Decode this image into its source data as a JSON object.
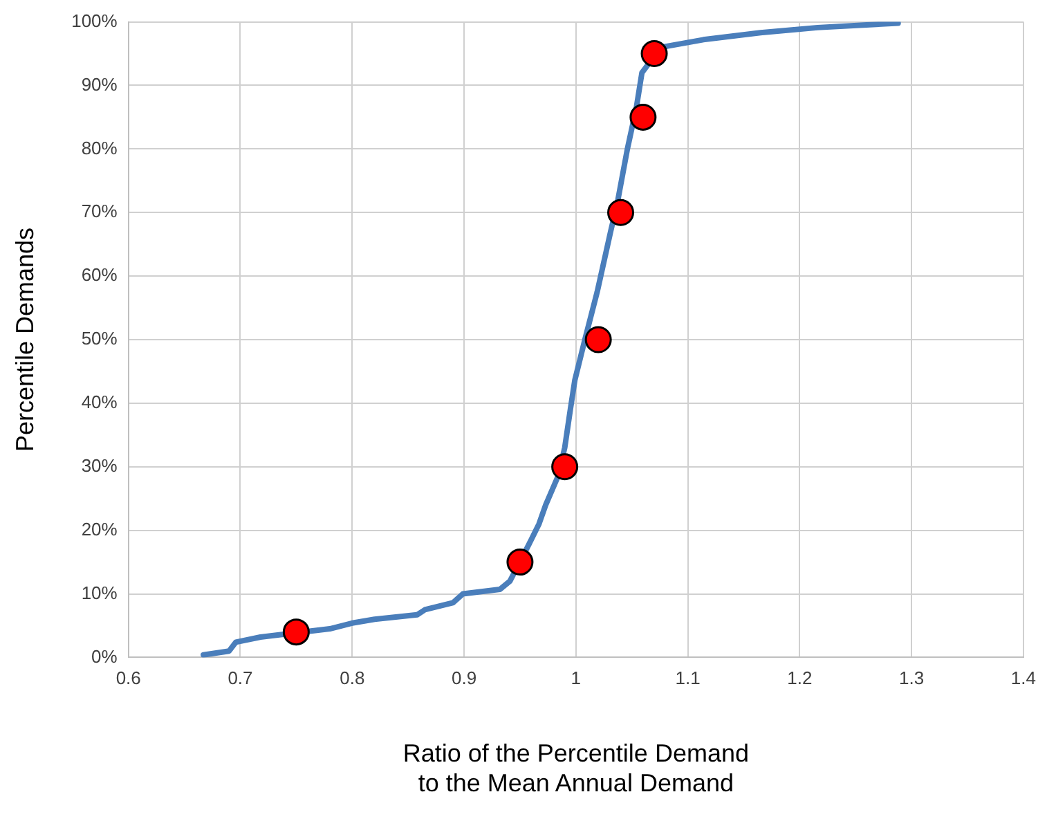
{
  "chart_data": {
    "type": "line",
    "xlabel": "Ratio of the Percentile Demand\nto the Mean Annual Demand",
    "ylabel": "Percentile Demands",
    "xlim": [
      0.6,
      1.4
    ],
    "xticks": [
      0.6,
      0.7,
      0.8,
      0.9,
      1,
      1.1,
      1.2,
      1.3,
      1.4
    ],
    "ylim": [
      0,
      100
    ],
    "yticks": [
      {
        "value": 0,
        "label": "0%"
      },
      {
        "value": 10,
        "label": "10%"
      },
      {
        "value": 20,
        "label": "20%"
      },
      {
        "value": 30,
        "label": "30%"
      },
      {
        "value": 40,
        "label": "40%"
      },
      {
        "value": 50,
        "label": "50%"
      },
      {
        "value": 60,
        "label": "60%"
      },
      {
        "value": 70,
        "label": "70%"
      },
      {
        "value": 80,
        "label": "80%"
      },
      {
        "value": 90,
        "label": "90%"
      },
      {
        "value": 100,
        "label": "100%"
      }
    ],
    "grid": true,
    "legend": false,
    "series": [
      {
        "color": "#4a7ebb",
        "marker": "none",
        "line_style": "solid",
        "x": [
          0.667,
          0.69,
          0.696,
          0.718,
          0.78,
          0.8,
          0.82,
          0.858,
          0.865,
          0.89,
          0.899,
          0.932,
          0.941,
          0.958,
          0.967,
          0.973,
          0.984,
          0.99,
          0.995,
          0.999,
          1.008,
          1.019,
          1.031,
          1.037,
          1.046,
          1.054,
          1.059,
          1.076,
          1.114,
          1.165,
          1.216,
          1.288
        ],
        "values": [
          0.4,
          1,
          2.4,
          3.2,
          4.5,
          5.4,
          6,
          6.7,
          7.5,
          8.6,
          10,
          10.7,
          12,
          17.8,
          21,
          24,
          28.5,
          33,
          39,
          43.6,
          50,
          57.5,
          67,
          71.5,
          80,
          86.5,
          92,
          96,
          97.2,
          98.3,
          99.1,
          99.8
        ]
      },
      {
        "type": "scatter",
        "color": "#ff0000",
        "marker": "circle",
        "x": [
          0.75,
          0.95,
          0.99,
          1.02,
          1.04,
          1.06,
          1.07
        ],
        "values": [
          4,
          15,
          30,
          50,
          70,
          85,
          95
        ]
      }
    ]
  }
}
